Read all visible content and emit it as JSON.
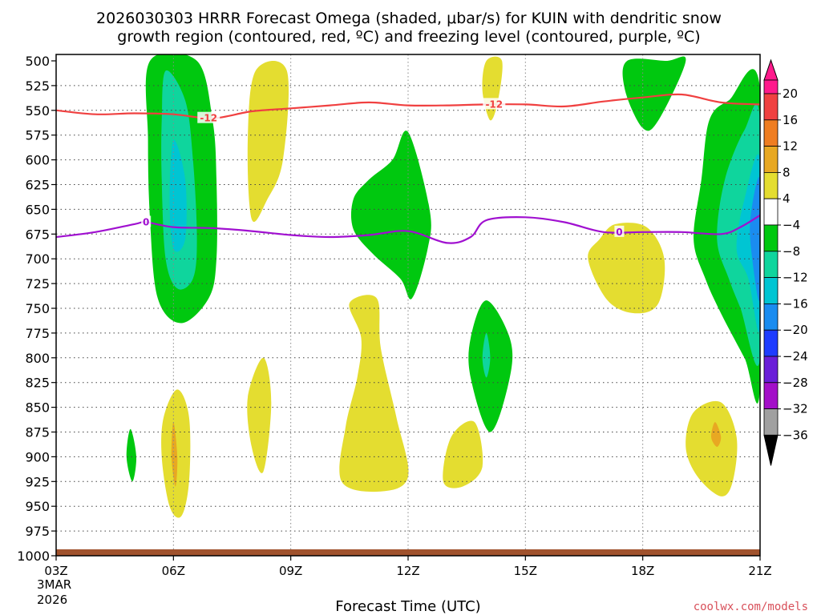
{
  "chart_data": {
    "type": "heatmap",
    "title_line1": "2026030303 HRRR Forecast Omega (shaded, μbar/s) for KUIN with dendritic snow",
    "title_line2": "growth region (contoured, red, ºC) and freezing level (contoured, purple, ºC)",
    "xlabel": "Forecast Time (UTC)",
    "ylabel": "",
    "credit": "coolwx.com/models",
    "x_ticks": [
      "03Z",
      "06Z",
      "09Z",
      "12Z",
      "15Z",
      "18Z",
      "21Z"
    ],
    "x_tick_hours": [
      3,
      6,
      9,
      12,
      15,
      18,
      21
    ],
    "x_date_line1": "3MAR",
    "x_date_line2": "2026",
    "xlim": [
      3,
      21
    ],
    "y_ticks": [
      "500",
      "525",
      "550",
      "575",
      "600",
      "625",
      "650",
      "675",
      "700",
      "725",
      "750",
      "775",
      "800",
      "825",
      "850",
      "875",
      "900",
      "925",
      "950",
      "975",
      "1000"
    ],
    "y_tick_values": [
      500,
      525,
      550,
      575,
      600,
      625,
      650,
      675,
      700,
      725,
      750,
      775,
      800,
      825,
      850,
      875,
      900,
      925,
      950,
      975,
      1000
    ],
    "ylim": [
      500,
      1000
    ],
    "colorbar": {
      "labels": [
        "20",
        "16",
        "12",
        "8",
        "4",
        "−4",
        "−8",
        "−12",
        "−16",
        "−20",
        "−24",
        "−28",
        "−32",
        "−36"
      ],
      "bins": [
        {
          "lo": 20,
          "hi": 24,
          "color": "#ff1a8c"
        },
        {
          "lo": 16,
          "hi": 20,
          "color": "#f04141"
        },
        {
          "lo": 12,
          "hi": 16,
          "color": "#ef7d21"
        },
        {
          "lo": 8,
          "hi": 12,
          "color": "#e8a822"
        },
        {
          "lo": 4,
          "hi": 8,
          "color": "#e4dd30"
        },
        {
          "lo": -4,
          "hi": 4,
          "color": "#ffffff"
        },
        {
          "lo": -8,
          "hi": -4,
          "color": "#00c80f"
        },
        {
          "lo": -12,
          "hi": -8,
          "color": "#0fd59d"
        },
        {
          "lo": -16,
          "hi": -12,
          "color": "#00c5d3"
        },
        {
          "lo": -20,
          "hi": -16,
          "color": "#1a8cf0"
        },
        {
          "lo": -24,
          "hi": -20,
          "color": "#1e3cff"
        },
        {
          "lo": -28,
          "hi": -24,
          "color": "#6a1ed8"
        },
        {
          "lo": -32,
          "hi": -28,
          "color": "#a30fc8"
        },
        {
          "lo": -36,
          "hi": -32,
          "color": "#a0a0a0"
        },
        {
          "lo": -40,
          "hi": -36,
          "color": "#000000"
        }
      ]
    },
    "contours": [
      {
        "name": "dgz-minus12",
        "color": "#f04040",
        "label": "-12",
        "points": [
          [
            3,
            550
          ],
          [
            4,
            554
          ],
          [
            5,
            553
          ],
          [
            6,
            554
          ],
          [
            7,
            558
          ],
          [
            8,
            551
          ],
          [
            9,
            548
          ],
          [
            10,
            545
          ],
          [
            11,
            542
          ],
          [
            12,
            545
          ],
          [
            13,
            545
          ],
          [
            14,
            544
          ],
          [
            15,
            544
          ],
          [
            16,
            546
          ],
          [
            17,
            541
          ],
          [
            18,
            537
          ],
          [
            19,
            534
          ],
          [
            20,
            542
          ],
          [
            21,
            544
          ]
        ],
        "label_points": [
          [
            6.9,
            558
          ],
          [
            14.2,
            544
          ]
        ]
      },
      {
        "name": "freezing-level-0",
        "color": "#a010d0",
        "label": "0",
        "points": [
          [
            3,
            678
          ],
          [
            4,
            673
          ],
          [
            5,
            665
          ],
          [
            5.3,
            663
          ],
          [
            6,
            668
          ],
          [
            7,
            669
          ],
          [
            8,
            672
          ],
          [
            9,
            676
          ],
          [
            10,
            678
          ],
          [
            11,
            676
          ],
          [
            12,
            672
          ],
          [
            13,
            684
          ],
          [
            13.6,
            678
          ],
          [
            14,
            661
          ],
          [
            15,
            658
          ],
          [
            16,
            663
          ],
          [
            17,
            673
          ],
          [
            18,
            673
          ],
          [
            19,
            673
          ],
          [
            20,
            675
          ],
          [
            20.5,
            668
          ],
          [
            21,
            656
          ]
        ],
        "label_points": [
          [
            5.3,
            663
          ],
          [
            17.4,
            673
          ]
        ]
      }
    ],
    "shaded_regions": [
      {
        "value": -6,
        "points": [
          [
            5.4,
            500
          ],
          [
            6.6,
            500
          ],
          [
            7.0,
            560
          ],
          [
            7.1,
            620
          ],
          [
            7.1,
            700
          ],
          [
            6.9,
            740
          ],
          [
            6.2,
            765
          ],
          [
            5.6,
            740
          ],
          [
            5.4,
            660
          ],
          [
            5.35,
            580
          ]
        ]
      },
      {
        "value": -10,
        "points": [
          [
            5.8,
            510
          ],
          [
            6.3,
            540
          ],
          [
            6.5,
            600
          ],
          [
            6.6,
            680
          ],
          [
            6.5,
            720
          ],
          [
            6.1,
            730
          ],
          [
            5.8,
            700
          ],
          [
            5.7,
            620
          ],
          [
            5.7,
            560
          ]
        ]
      },
      {
        "value": -14,
        "points": [
          [
            6.0,
            580
          ],
          [
            6.3,
            620
          ],
          [
            6.3,
            680
          ],
          [
            6.0,
            690
          ],
          [
            5.9,
            640
          ]
        ]
      },
      {
        "value": 6,
        "points": [
          [
            8.1,
            510
          ],
          [
            8.9,
            510
          ],
          [
            8.8,
            600
          ],
          [
            8.4,
            640
          ],
          [
            8.0,
            660
          ],
          [
            7.9,
            580
          ]
        ]
      },
      {
        "value": -6,
        "points": [
          [
            12,
            572
          ],
          [
            12.55,
            650
          ],
          [
            12.5,
            690
          ],
          [
            12.1,
            740
          ],
          [
            11.8,
            720
          ],
          [
            11.1,
            695
          ],
          [
            10.6,
            670
          ],
          [
            10.6,
            640
          ],
          [
            11.0,
            620
          ],
          [
            11.6,
            600
          ]
        ]
      },
      {
        "value": 6,
        "points": [
          [
            14.0,
            500
          ],
          [
            14.4,
            500
          ],
          [
            14.3,
            540
          ],
          [
            14.1,
            560
          ],
          [
            13.9,
            530
          ]
        ]
      },
      {
        "value": -6,
        "points": [
          [
            18.6,
            500
          ],
          [
            19.1,
            500
          ],
          [
            18.4,
            560
          ],
          [
            18.0,
            568
          ],
          [
            17.55,
            530
          ],
          [
            17.6,
            500
          ]
        ]
      },
      {
        "value": 6,
        "points": [
          [
            17.3,
            665
          ],
          [
            18.1,
            668
          ],
          [
            18.55,
            700
          ],
          [
            18.4,
            745
          ],
          [
            17.8,
            755
          ],
          [
            17.1,
            742
          ],
          [
            16.6,
            700
          ],
          [
            16.9,
            680
          ]
        ]
      },
      {
        "value": -6,
        "points": [
          [
            14.0,
            742
          ],
          [
            14.6,
            780
          ],
          [
            14.6,
            820
          ],
          [
            14.1,
            875
          ],
          [
            13.6,
            820
          ],
          [
            13.6,
            780
          ]
        ]
      },
      {
        "value": -10,
        "points": [
          [
            14.0,
            775
          ],
          [
            14.1,
            800
          ],
          [
            14.0,
            820
          ],
          [
            13.9,
            800
          ]
        ]
      },
      {
        "value": 6,
        "points": [
          [
            10.5,
            745
          ],
          [
            11.2,
            740
          ],
          [
            11.3,
            790
          ],
          [
            11.7,
            860
          ],
          [
            12.0,
            920
          ],
          [
            11.3,
            935
          ],
          [
            10.3,
            925
          ],
          [
            10.4,
            870
          ],
          [
            10.7,
            820
          ],
          [
            10.8,
            780
          ]
        ]
      },
      {
        "value": 6,
        "points": [
          [
            13.7,
            865
          ],
          [
            13.9,
            910
          ],
          [
            13.4,
            930
          ],
          [
            12.9,
            925
          ],
          [
            13.1,
            880
          ]
        ]
      },
      {
        "value": 6,
        "points": [
          [
            8.3,
            800
          ],
          [
            8.5,
            845
          ],
          [
            8.3,
            915
          ],
          [
            8.0,
            890
          ],
          [
            7.9,
            840
          ]
        ]
      },
      {
        "value": 6,
        "points": [
          [
            6.1,
            832
          ],
          [
            6.4,
            860
          ],
          [
            6.4,
            925
          ],
          [
            6.2,
            960
          ],
          [
            5.9,
            950
          ],
          [
            5.7,
            900
          ],
          [
            5.75,
            860
          ]
        ]
      },
      {
        "value": 10,
        "points": [
          [
            6.0,
            865
          ],
          [
            6.1,
            900
          ],
          [
            6.05,
            930
          ],
          [
            5.95,
            900
          ]
        ]
      },
      {
        "value": -6,
        "points": [
          [
            4.9,
            872
          ],
          [
            5.05,
            900
          ],
          [
            4.95,
            925
          ],
          [
            4.8,
            900
          ]
        ]
      },
      {
        "value": -6,
        "points": [
          [
            21,
            528
          ],
          [
            21,
            830
          ],
          [
            20.6,
            800
          ],
          [
            20.0,
            755
          ],
          [
            19.6,
            720
          ],
          [
            19.3,
            680
          ],
          [
            19.5,
            620
          ],
          [
            19.7,
            560
          ],
          [
            20.2,
            540
          ]
        ]
      },
      {
        "value": -10,
        "points": [
          [
            21,
            560
          ],
          [
            21,
            800
          ],
          [
            20.5,
            750
          ],
          [
            20.2,
            720
          ],
          [
            19.9,
            680
          ],
          [
            20.1,
            620
          ],
          [
            20.6,
            570
          ]
        ]
      },
      {
        "value": -14,
        "points": [
          [
            21,
            600
          ],
          [
            21,
            770
          ],
          [
            20.7,
            720
          ],
          [
            20.4,
            690
          ],
          [
            20.6,
            640
          ]
        ]
      },
      {
        "value": -18,
        "points": [
          [
            21,
            620
          ],
          [
            21,
            740
          ],
          [
            20.8,
            700
          ],
          [
            20.75,
            660
          ]
        ]
      },
      {
        "value": 6,
        "points": [
          [
            20.0,
            845
          ],
          [
            20.4,
            880
          ],
          [
            20.3,
            925
          ],
          [
            20.0,
            940
          ],
          [
            19.4,
            920
          ],
          [
            19.1,
            890
          ],
          [
            19.3,
            855
          ]
        ]
      },
      {
        "value": 10,
        "points": [
          [
            19.85,
            865
          ],
          [
            20.0,
            880
          ],
          [
            19.9,
            890
          ],
          [
            19.75,
            880
          ]
        ]
      }
    ]
  }
}
